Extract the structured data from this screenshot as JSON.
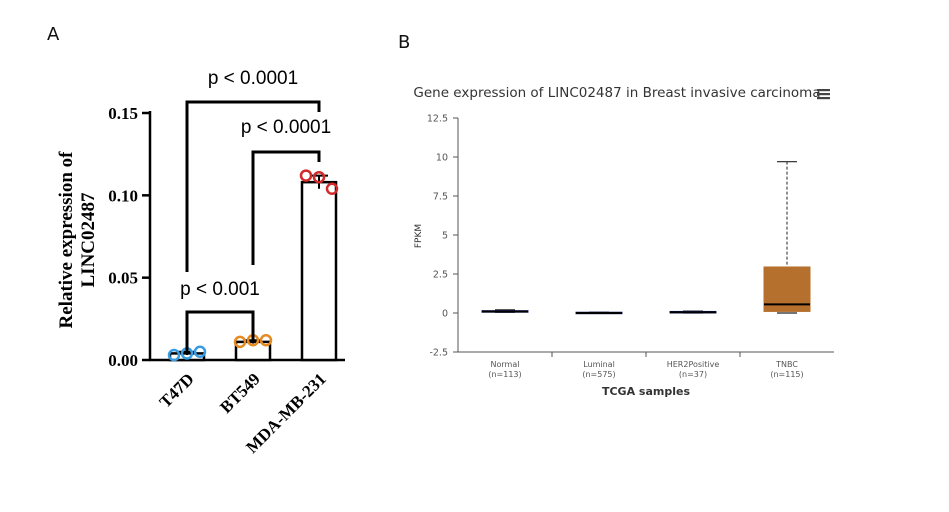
{
  "panels": {
    "a_letter": "A",
    "b_letter": "B"
  },
  "chart_data": [
    {
      "type": "bar",
      "panel": "A",
      "ylabel_lines": [
        "Relative expression of",
        "LINC02487"
      ],
      "ylim": [
        0,
        0.15
      ],
      "yticks": [
        "0.00",
        "0.05",
        "0.10",
        "0.15"
      ],
      "ytick_values": [
        0,
        0.05,
        0.1,
        0.15
      ],
      "categories": [
        "T47D",
        "BT549",
        "MDA-MB-231"
      ],
      "values": [
        0.004,
        0.011,
        0.108
      ],
      "points": [
        [
          0.003,
          0.004,
          0.005
        ],
        [
          0.011,
          0.012,
          0.012
        ],
        [
          0.112,
          0.111,
          0.104
        ]
      ],
      "error": [
        0.001,
        0.001,
        0.004
      ],
      "point_colors": [
        "#3a9be0",
        "#e58a1f",
        "#d22a2a"
      ],
      "comparisons": [
        {
          "from": 0,
          "to": 1,
          "label": "p < 0.001"
        },
        {
          "from": 1,
          "to": 2,
          "label": "p < 0.0001"
        },
        {
          "from": 0,
          "to": 2,
          "label": "p < 0.0001"
        }
      ]
    },
    {
      "type": "box",
      "panel": "B",
      "title": "Gene expression of LINC02487 in Breast invasive carcinoma",
      "menu_icon": "hamburger-menu-icon",
      "ylabel": "FPKM",
      "xlabel": "TCGA samples",
      "ylim": [
        -2.5,
        12.5
      ],
      "yticks": [
        "12.5",
        "10",
        "7.5",
        "5",
        "2.5",
        "0",
        "-2.5"
      ],
      "ytick_values": [
        12.5,
        10,
        7.5,
        5,
        2.5,
        0,
        -2.5
      ],
      "categories": [
        {
          "name": "Normal",
          "n": "(n=113)"
        },
        {
          "name": "Luminal",
          "n": "(n=575)"
        },
        {
          "name": "HER2Positive",
          "n": "(n=37)"
        },
        {
          "name": "TNBC",
          "n": "(n=115)"
        }
      ],
      "boxes": [
        {
          "min": 0.05,
          "q1": 0.05,
          "median": 0.1,
          "q3": 0.15,
          "max": 0.2,
          "color": "#1a237e"
        },
        {
          "min": 0.0,
          "q1": 0.0,
          "median": 0.0,
          "q3": 0.05,
          "max": 0.05,
          "color": "#1a237e"
        },
        {
          "min": 0.0,
          "q1": 0.0,
          "median": 0.05,
          "q3": 0.1,
          "max": 0.12,
          "color": "#1a237e"
        },
        {
          "min": 0.0,
          "q1": 0.1,
          "median": 0.55,
          "q3": 2.95,
          "max": 9.7,
          "color": "#b5702d"
        }
      ]
    }
  ]
}
